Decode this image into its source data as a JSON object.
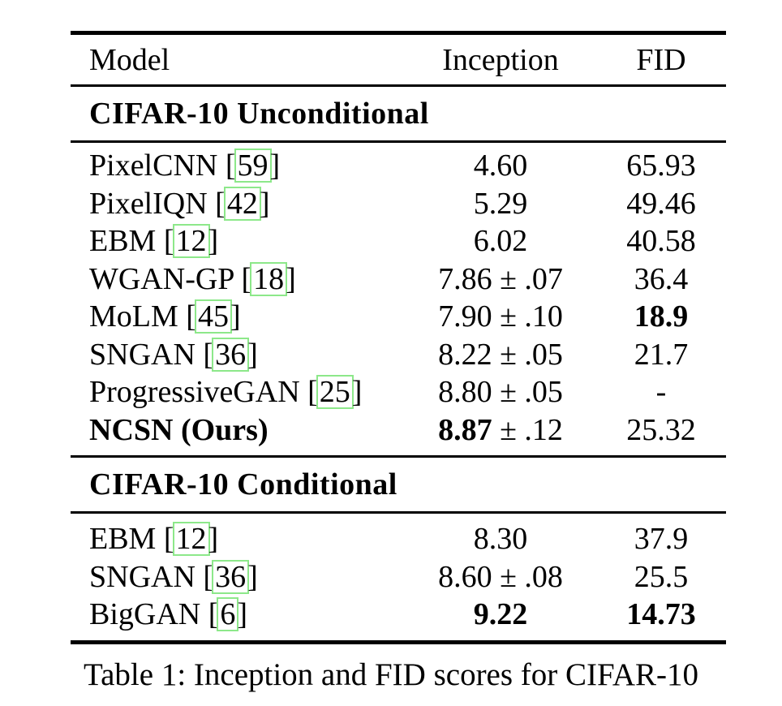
{
  "table": {
    "header": {
      "model": "Model",
      "inception": "Inception",
      "fid": "FID"
    },
    "sections": [
      {
        "title": "CIFAR-10 Unconditional",
        "rows": [
          {
            "model": "PixelCNN",
            "cite": "59",
            "inception": "4.60",
            "fid": "65.93"
          },
          {
            "model": "PixelIQN",
            "cite": "42",
            "inception": "5.29",
            "fid": "49.46"
          },
          {
            "model": "EBM",
            "cite": "12",
            "inception": "6.02",
            "fid": "40.58"
          },
          {
            "model": "WGAN-GP",
            "cite": "18",
            "inception": "7.86 ± .07",
            "fid": "36.4"
          },
          {
            "model": "MoLM",
            "cite": "45",
            "inception": "7.90 ± .10",
            "fid": "18.9",
            "fid_bold": true
          },
          {
            "model": "SNGAN",
            "cite": "36",
            "inception": "8.22 ± .05",
            "fid": "21.7"
          },
          {
            "model": "ProgressiveGAN",
            "cite": "25",
            "inception": "8.80 ± .05",
            "fid": "-"
          },
          {
            "model": "NCSN (Ours)",
            "model_bold": true,
            "inception": "8.87",
            "inception_bold": true,
            "inception_suffix": " ± .12",
            "fid": "25.32"
          }
        ]
      },
      {
        "title": "CIFAR-10 Conditional",
        "rows": [
          {
            "model": "EBM",
            "cite": "12",
            "inception": "8.30",
            "fid": "37.9"
          },
          {
            "model": "SNGAN",
            "cite": "36",
            "inception": "8.60 ± .08",
            "fid": "25.5"
          },
          {
            "model": "BigGAN",
            "cite": "6",
            "inception": "9.22",
            "inception_bold": true,
            "fid": "14.73",
            "fid_bold": true
          }
        ]
      }
    ],
    "cite_open_bracket": "[",
    "cite_close_bracket": "]"
  },
  "caption": "Table 1: Inception and FID scores for CIFAR-10",
  "colors": {
    "cite_box_border": "#8de88a",
    "rule": "#000000",
    "background": "#ffffff"
  }
}
